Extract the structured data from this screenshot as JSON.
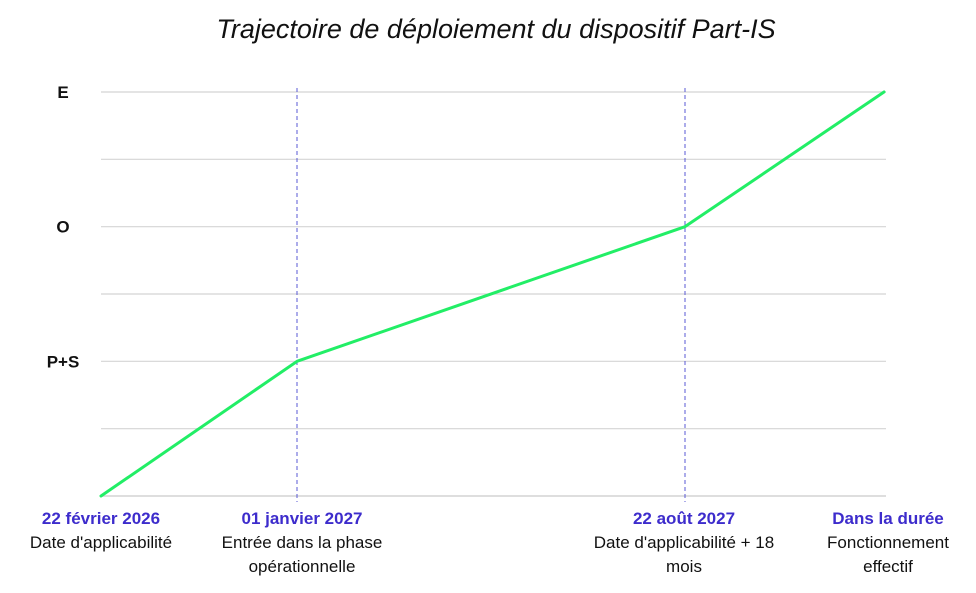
{
  "chart_data": {
    "type": "line",
    "title": "Trajectoire de déploiement du dispositif Part-IS",
    "xlabel": "",
    "ylabel": "",
    "grid": true,
    "y_levels": [
      {
        "label": "P+S",
        "level": 2
      },
      {
        "label": "O",
        "level": 4
      },
      {
        "label": "E",
        "level": 6
      }
    ],
    "ylim": [
      0,
      6
    ],
    "milestones": [
      {
        "date": "22 février 2026",
        "description": [
          "Date d'applicabilité"
        ],
        "value": 0,
        "reference_line": false
      },
      {
        "date": "01 janvier 2027",
        "description": [
          "Entrée dans la phase",
          "opérationnelle"
        ],
        "value": 2,
        "reference_line": true
      },
      {
        "date": "22 août 2027",
        "description": [
          "Date d'applicabilité + 18",
          "mois"
        ],
        "value": 4,
        "reference_line": true
      },
      {
        "date": "Dans la durée",
        "description": [
          "Fonctionnement",
          "effectif"
        ],
        "value": 6,
        "reference_line": false
      }
    ],
    "colors": {
      "line": "#22ee66",
      "reference_line": "#5a5ad6",
      "date_label": "#3d2ccc",
      "grid": "#d4d4d4"
    }
  }
}
